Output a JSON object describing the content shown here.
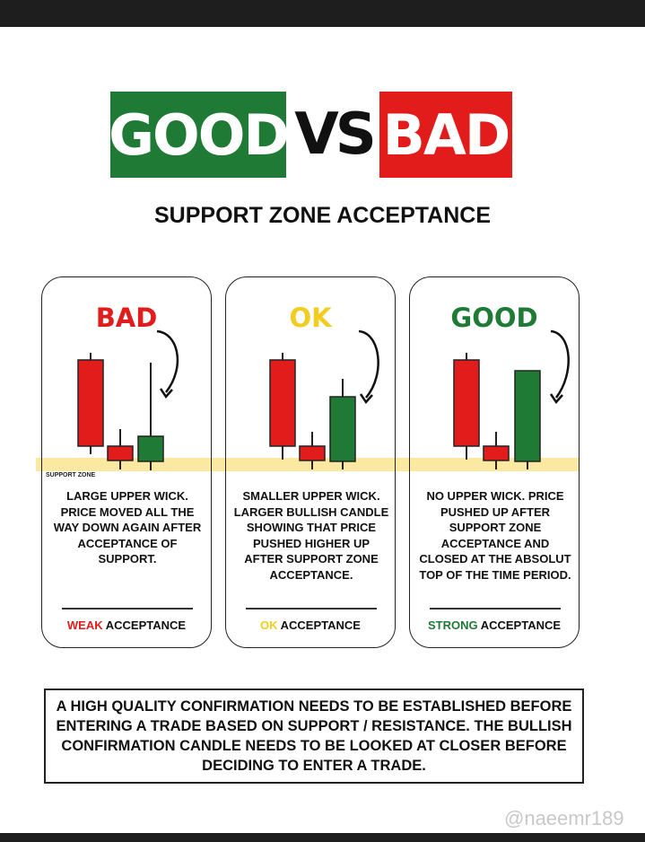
{
  "hero": {
    "good": "GOOD",
    "vs": "VS",
    "bad": "BAD"
  },
  "subtitle": "SUPPORT ZONE ACCEPTANCE",
  "zone_label": "SUPPORT ZONE",
  "colors": {
    "green": "#1f7a36",
    "red": "#e21b1b",
    "yellow": "#f2cc1f",
    "zone": "#fbe9a1"
  },
  "cards": [
    {
      "title": "BAD",
      "title_color": "#e21b1b",
      "description": "LARGE UPPER WICK. PRICE MOVED ALL THE WAY DOWN AGAIN AFTER ACCEPTANCE OF SUPPORT.",
      "footer_highlight": "WEAK",
      "footer_rest": " ACCEPTANCE",
      "footer_color": "#e21b1b"
    },
    {
      "title": "OK",
      "title_color": "#f2cc1f",
      "description": "SMALLER UPPER WICK. LARGER BULLISH CANDLE SHOWING THAT PRICE PUSHED HIGHER UP AFTER SUPPORT ZONE ACCEPTANCE.",
      "footer_highlight": "OK",
      "footer_rest": " ACCEPTANCE",
      "footer_color": "#f2cc1f"
    },
    {
      "title": "GOOD",
      "title_color": "#1f7a36",
      "description": "NO UPPER WICK. PRICE PUSHED UP AFTER SUPPORT ZONE ACCEPTANCE AND CLOSED AT THE ABSOLUT TOP OF THE TIME PERIOD.",
      "footer_highlight": "STRONG",
      "footer_rest": " ACCEPTANCE",
      "footer_color": "#1f7a36"
    }
  ],
  "note": "A HIGH QUALITY CONFIRMATION NEEDS TO BE ESTABLISHED BEFORE ENTERING A TRADE BASED ON SUPPORT / RESISTANCE. THE BULLISH CONFIRMATION CANDLE NEEDS TO BE LOOKED AT CLOSER BEFORE DECIDING TO ENTER A TRADE.",
  "watermark": "@naeemr189"
}
